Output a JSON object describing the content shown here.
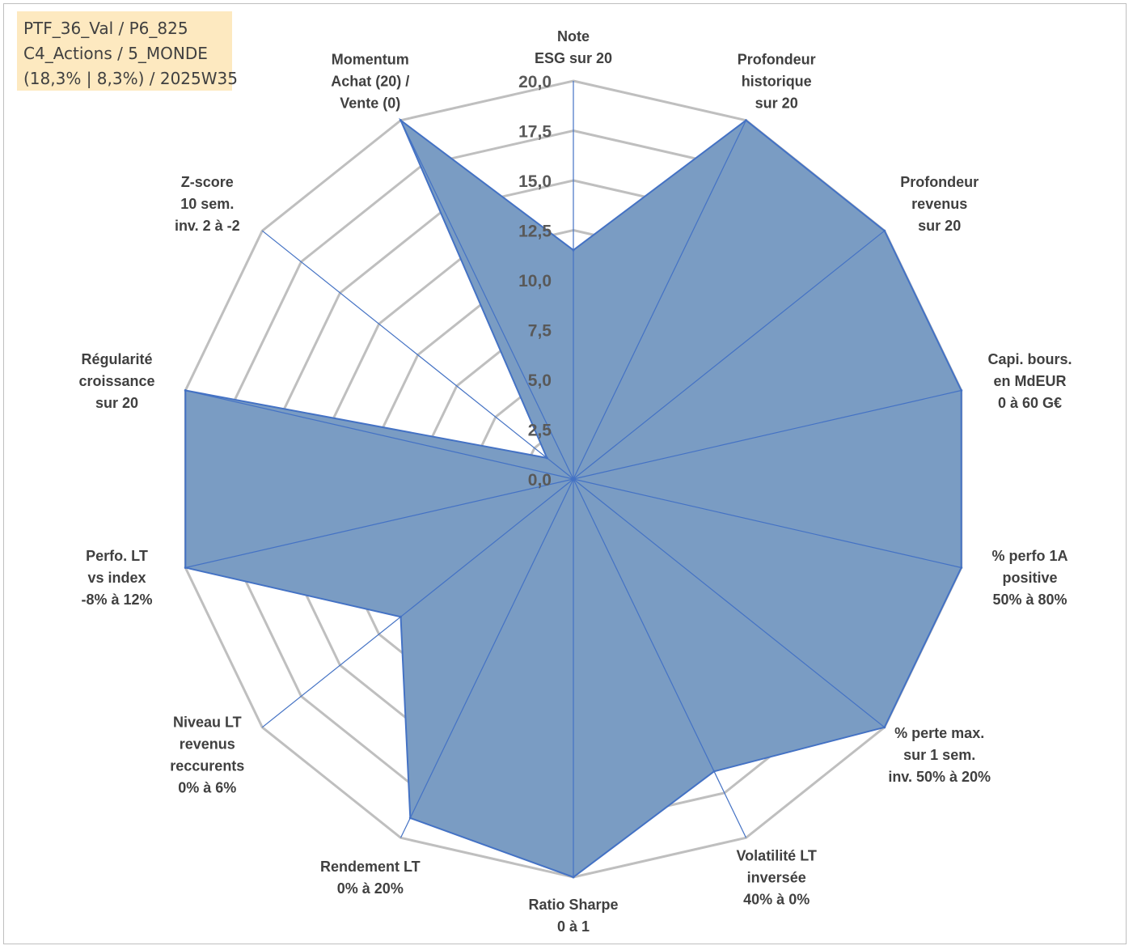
{
  "info_box": {
    "line1": "PTF_36_Val / P6_825",
    "line2": "C4_Actions / 5_MONDE",
    "line3": "(18,3% | 8,3%) / 2025W35"
  },
  "colors": {
    "fill": "#7a9cc3",
    "series_line": "#4472c4",
    "grid": "#bfbfbf",
    "text": "#404040",
    "info_bg": "#fde9c0"
  },
  "chart_data": {
    "type": "radar",
    "title": "",
    "rmax": 20,
    "ticks": [
      "0,0",
      "2,5",
      "5,0",
      "7,5",
      "10,0",
      "12,5",
      "15,0",
      "17,5",
      "20,0"
    ],
    "tick_values": [
      0,
      2.5,
      5,
      7.5,
      10,
      12.5,
      15,
      17.5,
      20
    ],
    "grid": true,
    "categories": [
      [
        "Note",
        "ESG sur 20"
      ],
      [
        "Profondeur",
        "historique",
        "sur 20"
      ],
      [
        "Profondeur",
        "revenus",
        "sur 20"
      ],
      [
        "Capi. bours.",
        "en MdEUR",
        "0 à 60 G€"
      ],
      [
        "% perfo 1A",
        "positive",
        "50% à 80%"
      ],
      [
        "% perte max.",
        "sur 1 sem.",
        "inv. 50% à 20%"
      ],
      [
        "Volatilité LT",
        "inversée",
        "40% à 0%"
      ],
      [
        "Ratio Sharpe",
        "0 à 1"
      ],
      [
        "Rendement LT",
        "0% à 20%"
      ],
      [
        "Niveau LT",
        "revenus",
        "reccurents",
        "0% à 6%"
      ],
      [
        "Perfo. LT",
        "vs index",
        "-8% à 12%"
      ],
      [
        "Régularité",
        "croissance",
        "sur 20"
      ],
      [
        "Z-score",
        "10 sem.",
        "inv. 2 à -2"
      ],
      [
        "Momentum",
        "Achat (20) /",
        "Vente (0)"
      ]
    ],
    "values": [
      11.5,
      20,
      20,
      20,
      20,
      20,
      16.3,
      20,
      18.9,
      11.1,
      20,
      20,
      1.7,
      20
    ]
  }
}
